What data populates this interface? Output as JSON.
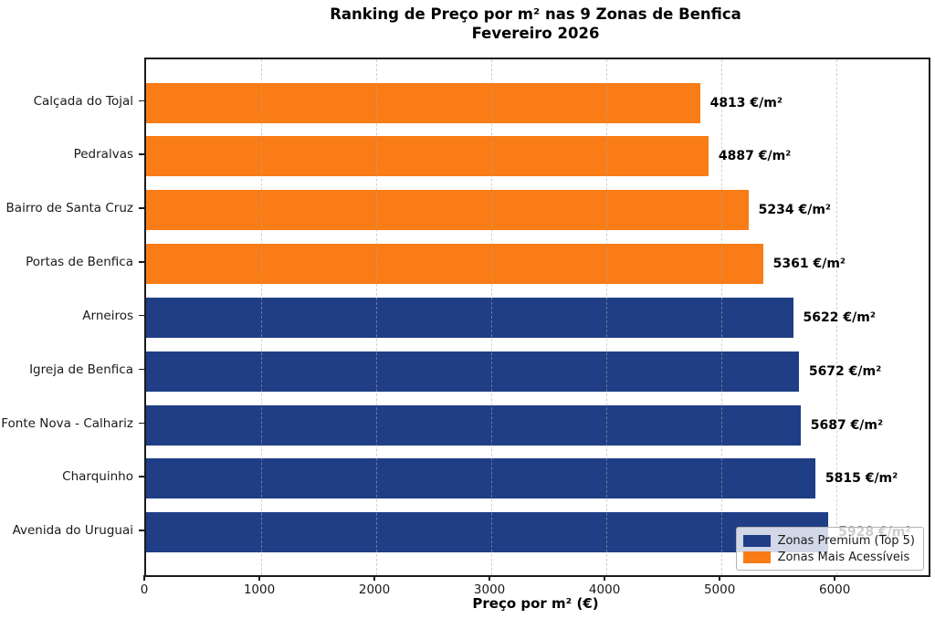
{
  "title": "Ranking de Preço por m² nas 9 Zonas de Benfica",
  "subtitle": "Fevereiro 2026",
  "chart_data": {
    "type": "bar",
    "orientation": "horizontal",
    "title": "Ranking de Preço por m² nas 9 Zonas de Benfica",
    "subtitle": "Fevereiro 2026",
    "categories": [
      "Calçada do Tojal",
      "Pedralvas",
      "Bairro de Santa Cruz",
      "Portas de Benfica",
      "Arneiros",
      "Igreja de Benfica",
      "Fonte Nova - Calhariz",
      "Charquinho",
      "Avenida do Uruguai"
    ],
    "values": [
      4813,
      4887,
      5234,
      5361,
      5622,
      5672,
      5687,
      5815,
      5928
    ],
    "groups": [
      "accessible",
      "accessible",
      "accessible",
      "accessible",
      "premium",
      "premium",
      "premium",
      "premium",
      "premium"
    ],
    "value_suffix": " €/m²",
    "xlabel": "Preço por m² (€)",
    "ylabel": "",
    "xlim": [
      0,
      6800
    ],
    "xticks": [
      0,
      1000,
      2000,
      3000,
      4000,
      5000,
      6000
    ],
    "grid": "vertical-dashed",
    "colors": {
      "premium": "#1f3e86",
      "accessible": "#f97c16"
    },
    "legend": {
      "position": "lower right",
      "items": [
        {
          "key": "premium",
          "label": "Zonas Premium (Top 5)",
          "color": "#1f3e86"
        },
        {
          "key": "accessible",
          "label": "Zonas Mais Acessíveis",
          "color": "#f97c16"
        }
      ]
    }
  }
}
